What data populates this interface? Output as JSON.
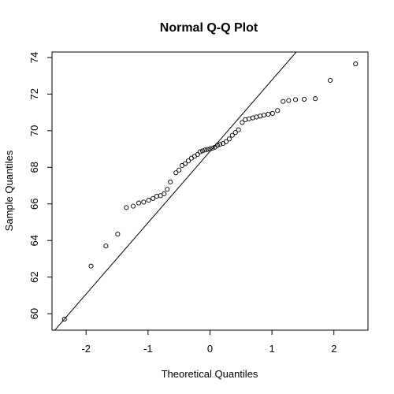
{
  "chart_data": {
    "type": "scatter",
    "title": "Normal Q-Q Plot",
    "xlabel": "Theoretical Quantiles",
    "ylabel": "Sample Quantiles",
    "xlim": [
      -2.55,
      2.55
    ],
    "ylim": [
      59.1,
      74.3
    ],
    "x_ticks": [
      -2,
      -1,
      0,
      1,
      2
    ],
    "y_ticks": [
      60,
      62,
      64,
      66,
      68,
      70,
      72,
      74
    ],
    "x_tick_labels": [
      "-2",
      "-1",
      "0",
      "1",
      "2"
    ],
    "y_tick_labels": [
      "60",
      "62",
      "64",
      "66",
      "68",
      "70",
      "72",
      "74"
    ],
    "grid": false,
    "reference_line": {
      "slope": 3.9,
      "intercept": 68.87
    },
    "points": [
      [
        -2.35,
        59.7
      ],
      [
        -1.92,
        62.6
      ],
      [
        -1.68,
        63.7
      ],
      [
        -1.49,
        64.35
      ],
      [
        -1.35,
        65.8
      ],
      [
        -1.24,
        65.88
      ],
      [
        -1.15,
        66.05
      ],
      [
        -1.07,
        66.1
      ],
      [
        -0.99,
        66.2
      ],
      [
        -0.92,
        66.3
      ],
      [
        -0.86,
        66.42
      ],
      [
        -0.8,
        66.45
      ],
      [
        -0.74,
        66.55
      ],
      [
        -0.69,
        66.8
      ],
      [
        -0.64,
        67.2
      ],
      [
        -0.55,
        67.7
      ],
      [
        -0.5,
        67.85
      ],
      [
        -0.45,
        68.1
      ],
      [
        -0.4,
        68.2
      ],
      [
        -0.35,
        68.35
      ],
      [
        -0.3,
        68.5
      ],
      [
        -0.25,
        68.6
      ],
      [
        -0.2,
        68.7
      ],
      [
        -0.16,
        68.85
      ],
      [
        -0.12,
        68.9
      ],
      [
        -0.08,
        68.95
      ],
      [
        -0.04,
        68.98
      ],
      [
        0.0,
        69.0
      ],
      [
        0.04,
        69.05
      ],
      [
        0.08,
        69.1
      ],
      [
        0.12,
        69.2
      ],
      [
        0.16,
        69.25
      ],
      [
        0.21,
        69.3
      ],
      [
        0.26,
        69.4
      ],
      [
        0.31,
        69.55
      ],
      [
        0.36,
        69.75
      ],
      [
        0.41,
        69.9
      ],
      [
        0.46,
        70.05
      ],
      [
        0.52,
        70.45
      ],
      [
        0.57,
        70.6
      ],
      [
        0.63,
        70.65
      ],
      [
        0.69,
        70.7
      ],
      [
        0.75,
        70.75
      ],
      [
        0.81,
        70.8
      ],
      [
        0.87,
        70.85
      ],
      [
        0.94,
        70.9
      ],
      [
        1.01,
        70.95
      ],
      [
        1.09,
        71.1
      ],
      [
        1.18,
        71.6
      ],
      [
        1.27,
        71.65
      ],
      [
        1.38,
        71.7
      ],
      [
        1.52,
        71.72
      ],
      [
        1.7,
        71.75
      ],
      [
        1.94,
        72.75
      ],
      [
        2.35,
        73.65
      ]
    ]
  }
}
